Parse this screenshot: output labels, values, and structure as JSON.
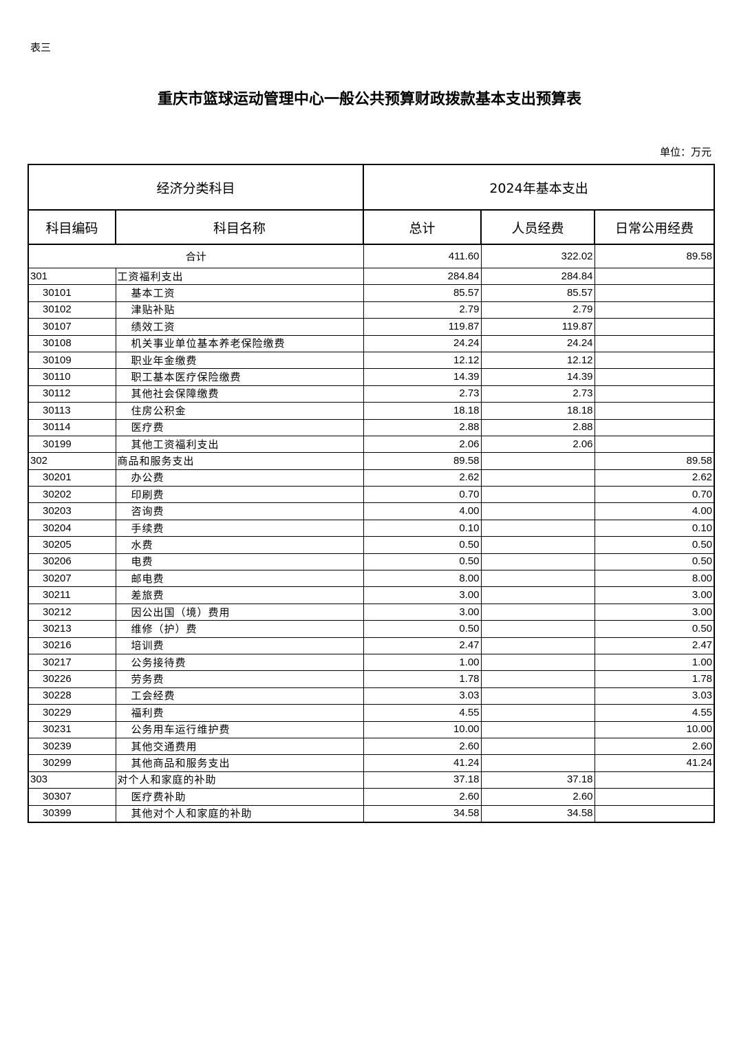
{
  "doc_label": "表三",
  "title": "重庆市篮球运动管理中心一般公共预算财政拨款基本支出预算表",
  "unit": "单位：万元",
  "header": {
    "group1": "经济分类科目",
    "group2": "2024年基本支出",
    "code": "科目编码",
    "name": "科目名称",
    "total": "总计",
    "personnel": "人员经费",
    "public": "日常公用经费"
  },
  "sum": {
    "label": "合计",
    "total": "411.60",
    "personnel": "322.02",
    "public": "89.58"
  },
  "rows": [
    [
      "301",
      "工资福利支出",
      "284.84",
      "284.84",
      "",
      0
    ],
    [
      "30101",
      "基本工资",
      "85.57",
      "85.57",
      "",
      1
    ],
    [
      "30102",
      "津贴补贴",
      "2.79",
      "2.79",
      "",
      1
    ],
    [
      "30107",
      "绩效工资",
      "119.87",
      "119.87",
      "",
      1
    ],
    [
      "30108",
      "机关事业单位基本养老保险缴费",
      "24.24",
      "24.24",
      "",
      1
    ],
    [
      "30109",
      "职业年金缴费",
      "12.12",
      "12.12",
      "",
      1
    ],
    [
      "30110",
      "职工基本医疗保险缴费",
      "14.39",
      "14.39",
      "",
      1
    ],
    [
      "30112",
      "其他社会保障缴费",
      "2.73",
      "2.73",
      "",
      1
    ],
    [
      "30113",
      "住房公积金",
      "18.18",
      "18.18",
      "",
      1
    ],
    [
      "30114",
      "医疗费",
      "2.88",
      "2.88",
      "",
      1
    ],
    [
      "30199",
      "其他工资福利支出",
      "2.06",
      "2.06",
      "",
      1
    ],
    [
      "302",
      "商品和服务支出",
      "89.58",
      "",
      "89.58",
      0
    ],
    [
      "30201",
      "办公费",
      "2.62",
      "",
      "2.62",
      1
    ],
    [
      "30202",
      "印刷费",
      "0.70",
      "",
      "0.70",
      1
    ],
    [
      "30203",
      "咨询费",
      "4.00",
      "",
      "4.00",
      1
    ],
    [
      "30204",
      "手续费",
      "0.10",
      "",
      "0.10",
      1
    ],
    [
      "30205",
      "水费",
      "0.50",
      "",
      "0.50",
      1
    ],
    [
      "30206",
      "电费",
      "0.50",
      "",
      "0.50",
      1
    ],
    [
      "30207",
      "邮电费",
      "8.00",
      "",
      "8.00",
      1
    ],
    [
      "30211",
      "差旅费",
      "3.00",
      "",
      "3.00",
      1
    ],
    [
      "30212",
      "因公出国（境）费用",
      "3.00",
      "",
      "3.00",
      1
    ],
    [
      "30213",
      "维修（护）费",
      "0.50",
      "",
      "0.50",
      1
    ],
    [
      "30216",
      "培训费",
      "2.47",
      "",
      "2.47",
      1
    ],
    [
      "30217",
      "公务接待费",
      "1.00",
      "",
      "1.00",
      1
    ],
    [
      "30226",
      "劳务费",
      "1.78",
      "",
      "1.78",
      1
    ],
    [
      "30228",
      "工会经费",
      "3.03",
      "",
      "3.03",
      1
    ],
    [
      "30229",
      "福利费",
      "4.55",
      "",
      "4.55",
      1
    ],
    [
      "30231",
      "公务用车运行维护费",
      "10.00",
      "",
      "10.00",
      1
    ],
    [
      "30239",
      "其他交通费用",
      "2.60",
      "",
      "2.60",
      1
    ],
    [
      "30299",
      "其他商品和服务支出",
      "41.24",
      "",
      "41.24",
      1
    ],
    [
      "303",
      "对个人和家庭的补助",
      "37.18",
      "37.18",
      "",
      0
    ],
    [
      "30307",
      "医疗费补助",
      "2.60",
      "2.60",
      "",
      1
    ],
    [
      "30399",
      "其他对个人和家庭的补助",
      "34.58",
      "34.58",
      "",
      1
    ]
  ]
}
